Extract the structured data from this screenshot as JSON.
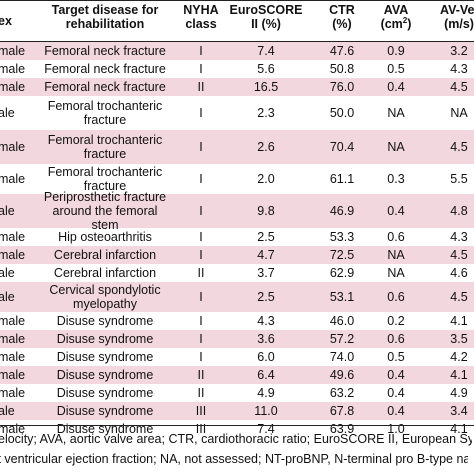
{
  "header": {
    "sex": "ex",
    "target_disease": "Target disease for rehabilitation",
    "nyha": "NYHA class",
    "euroscore": "EuroSCORE II (%)",
    "ctr": "CTR (%)",
    "ava_label": "AVA",
    "ava_unit_base": "(cm",
    "ava_unit_sup": "2",
    "ava_unit_close": ")",
    "av_velocity": "AV-Vel (m/s)"
  },
  "rows": [
    {
      "sex": "male",
      "disease": "Femoral neck fracture",
      "nyha": "I",
      "euroscore": "7.4",
      "ctr": "47.6",
      "ava": "0.9",
      "av": "3.2",
      "shaded": true
    },
    {
      "sex": "male",
      "disease": "Femoral neck fracture",
      "nyha": "I",
      "euroscore": "5.6",
      "ctr": "50.8",
      "ava": "0.5",
      "av": "4.3",
      "shaded": false
    },
    {
      "sex": "male",
      "disease": "Femoral neck fracture",
      "nyha": "II",
      "euroscore": "16.5",
      "ctr": "76.0",
      "ava": "0.4",
      "av": "4.5",
      "shaded": true
    },
    {
      "sex": "ale",
      "disease": "Femoral trochanteric fracture",
      "nyha": "I",
      "euroscore": "2.3",
      "ctr": "50.0",
      "ava": "NA",
      "av": "NA",
      "shaded": false
    },
    {
      "sex": "male",
      "disease": "Femoral trochanteric fracture",
      "nyha": "I",
      "euroscore": "2.6",
      "ctr": "70.4",
      "ava": "NA",
      "av": "4.5",
      "shaded": true
    },
    {
      "sex": "male",
      "disease": "Femoral trochanteric fracture",
      "nyha": "I",
      "euroscore": "2.0",
      "ctr": "61.1",
      "ava": "0.3",
      "av": "5.5",
      "shaded": false
    },
    {
      "sex": "ale",
      "disease": "Periprosthetic fracture around the femoral stem",
      "nyha": "I",
      "euroscore": "9.8",
      "ctr": "46.9",
      "ava": "0.4",
      "av": "4.8",
      "shaded": true
    },
    {
      "sex": "male",
      "disease": "Hip osteoarthritis",
      "nyha": "I",
      "euroscore": "2.5",
      "ctr": "53.3",
      "ava": "0.6",
      "av": "4.3",
      "shaded": false
    },
    {
      "sex": "male",
      "disease": "Cerebral infarction",
      "nyha": "I",
      "euroscore": "4.7",
      "ctr": "72.5",
      "ava": "NA",
      "av": "4.5",
      "shaded": true
    },
    {
      "sex": "ale",
      "disease": "Cerebral infarction",
      "nyha": "II",
      "euroscore": "3.7",
      "ctr": "62.9",
      "ava": "NA",
      "av": "4.6",
      "shaded": false
    },
    {
      "sex": "ale",
      "disease": "Cervical spondylotic myelopathy",
      "nyha": "I",
      "euroscore": "2.5",
      "ctr": "53.1",
      "ava": "0.6",
      "av": "4.5",
      "shaded": true
    },
    {
      "sex": "male",
      "disease": "Disuse syndrome",
      "nyha": "I",
      "euroscore": "4.3",
      "ctr": "46.0",
      "ava": "0.2",
      "av": "4.1",
      "shaded": false
    },
    {
      "sex": "male",
      "disease": "Disuse syndrome",
      "nyha": "I",
      "euroscore": "3.6",
      "ctr": "57.2",
      "ava": "0.6",
      "av": "3.5",
      "shaded": true
    },
    {
      "sex": "male",
      "disease": "Disuse syndrome",
      "nyha": "I",
      "euroscore": "6.0",
      "ctr": "74.0",
      "ava": "0.5",
      "av": "4.2",
      "shaded": false
    },
    {
      "sex": "male",
      "disease": "Disuse syndrome",
      "nyha": "II",
      "euroscore": "6.4",
      "ctr": "49.6",
      "ava": "0.4",
      "av": "4.1",
      "shaded": true
    },
    {
      "sex": "male",
      "disease": "Disuse syndrome",
      "nyha": "II",
      "euroscore": "4.9",
      "ctr": "63.2",
      "ava": "0.4",
      "av": "4.9",
      "shaded": false
    },
    {
      "sex": "ale",
      "disease": "Disuse syndrome",
      "nyha": "III",
      "euroscore": "11.0",
      "ctr": "67.8",
      "ava": "0.4",
      "av": "3.4",
      "shaded": true
    },
    {
      "sex": "male",
      "disease": "Disuse syndrome",
      "nyha": "III",
      "euroscore": "7.4",
      "ctr": "63.9",
      "ava": "1.0",
      "av": "4.1",
      "shaded": false
    }
  ],
  "footnote": {
    "line1": "elocity; AVA, aortic valve area; CTR, cardiothoracic ratio; EuroSCORE II, European Syst",
    "line2": "ft ventricular ejection fraction; NA, not assessed; NT-proBNP, N-terminal pro B-type natriu"
  },
  "colors": {
    "row_shade": "#f3d7df",
    "rule": "#222222",
    "text": "#111111"
  }
}
